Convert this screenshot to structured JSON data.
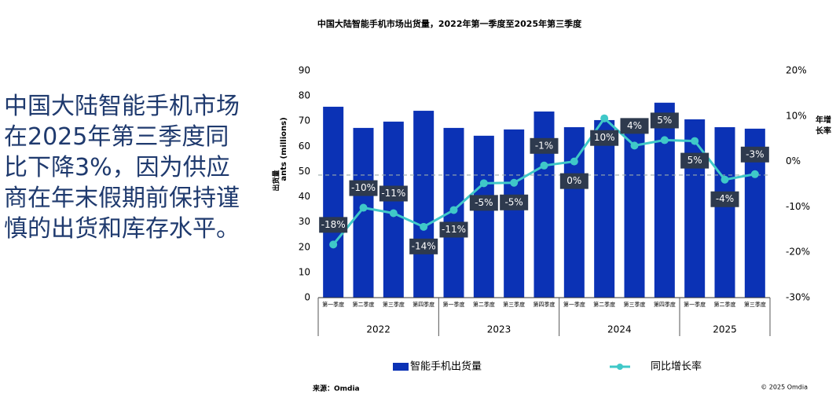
{
  "panel": {
    "text": "中国大陆智能手机市场在2025年第三季度同比下降3%，因为供应商在年末假期前保持谨慎的出货和库存水平。"
  },
  "chart_data": {
    "type": "combo",
    "title": "中国大陆智能手机市场出货量，2022年第一季度至2025年第三季度",
    "ylabel": "ants (millions)",
    "ylabel_overlay": "出货量",
    "y2label": [
      "年增",
      "长率"
    ],
    "categories": [
      "第一季度",
      "第二季度",
      "第三季度",
      "第四季度",
      "第一季度",
      "第二季度",
      "第三季度",
      "第四季度",
      "第一季度",
      "第二季度",
      "第三季度",
      "第四季度",
      "第一季度",
      "第二季度",
      "第三季度"
    ],
    "groups": [
      {
        "label": "2022",
        "size": 4
      },
      {
        "label": "2023",
        "size": 4
      },
      {
        "label": "2024",
        "size": 4
      },
      {
        "label": "2025",
        "size": 3
      }
    ],
    "series": [
      {
        "name": "智能手机出货量",
        "type": "bar",
        "color": "#0b32b5",
        "values": [
          75.7,
          67.3,
          69.8,
          74.1,
          67.3,
          64.2,
          66.7,
          73.8,
          67.6,
          70.4,
          70.8,
          77.3,
          70.7,
          67.6,
          67.0
        ]
      },
      {
        "name": "同比增长率",
        "type": "line",
        "axis": "y2",
        "color": "#3fc8c8",
        "values": [
          -18.3,
          -10.2,
          -11.4,
          -14.4,
          -10.7,
          -4.8,
          -4.7,
          -0.9,
          0,
          9.5,
          3.5,
          4.7,
          4.5,
          -4,
          -2.8
        ],
        "value_labels": [
          "-18%",
          "-10%",
          "-11%",
          "-14%",
          "-11%",
          "-5%",
          "-5%",
          "-1%",
          "0%",
          "10%",
          "4%",
          "5%",
          "5%",
          "-4%",
          "-3%"
        ]
      }
    ],
    "ylim": [
      0,
      90
    ],
    "yticks": [
      0,
      10,
      20,
      30,
      40,
      50,
      60,
      70,
      80,
      90
    ],
    "y2lim": [
      -30,
      20
    ],
    "y2ticks": [
      {
        "value": -30,
        "label": "-30%"
      },
      {
        "value": -20,
        "label": "-20%"
      },
      {
        "value": -10,
        "label": "-10%"
      },
      {
        "value": 0,
        "label": "0%"
      },
      {
        "value": 10,
        "label": "10%"
      },
      {
        "value": 20,
        "label": "20%"
      }
    ],
    "y2_reference_line": -3,
    "source": "来源：Omdia",
    "copyright": "© 2025 Omdia"
  }
}
